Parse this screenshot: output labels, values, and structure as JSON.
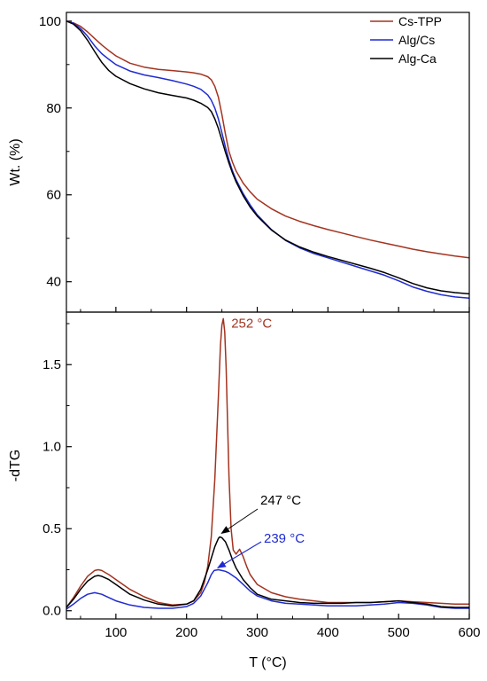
{
  "chart_data": [
    {
      "type": "line",
      "xlabel": "T (°C)",
      "ylabel": "Wt. (%)",
      "xlim": [
        30,
        600
      ],
      "ylim": [
        33,
        102
      ],
      "xticks": [
        100,
        200,
        300,
        400,
        500,
        600
      ],
      "yticks": [
        40,
        60,
        80,
        100
      ],
      "legend_position": "top-right",
      "series": [
        {
          "name": "Cs-TPP",
          "color": "#a3331f",
          "x": [
            30,
            40,
            50,
            60,
            70,
            80,
            90,
            100,
            120,
            140,
            160,
            180,
            200,
            210,
            220,
            230,
            235,
            240,
            245,
            250,
            255,
            260,
            265,
            270,
            280,
            290,
            300,
            320,
            340,
            360,
            380,
            400,
            420,
            440,
            460,
            480,
            500,
            520,
            540,
            560,
            580,
            600
          ],
          "y": [
            100,
            99.6,
            98.8,
            97.5,
            96,
            94.5,
            93.2,
            92,
            90.3,
            89.4,
            88.9,
            88.6,
            88.3,
            88.1,
            87.8,
            87.2,
            86.5,
            85,
            82.5,
            78.5,
            74,
            70,
            67.5,
            65.5,
            62.7,
            60.7,
            59,
            56.8,
            55.1,
            53.9,
            52.9,
            52,
            51.2,
            50.4,
            49.6,
            48.9,
            48.2,
            47.5,
            46.9,
            46.4,
            45.9,
            45.5
          ]
        },
        {
          "name": "Alg/Cs",
          "color": "#1f2bd1",
          "x": [
            30,
            40,
            50,
            60,
            70,
            80,
            90,
            100,
            120,
            140,
            160,
            180,
            200,
            210,
            220,
            230,
            235,
            240,
            245,
            250,
            255,
            260,
            265,
            270,
            280,
            290,
            300,
            320,
            340,
            360,
            380,
            400,
            420,
            440,
            460,
            480,
            500,
            520,
            540,
            560,
            580,
            600
          ],
          "y": [
            100,
            99.5,
            98.3,
            96.5,
            94.3,
            92.5,
            91.2,
            90,
            88.5,
            87.6,
            87,
            86.3,
            85.5,
            85,
            84.3,
            83,
            81.8,
            80,
            77.5,
            74.3,
            71,
            68,
            65.5,
            63.5,
            60.3,
            57.7,
            55.4,
            52,
            49.5,
            47.8,
            46.5,
            45.5,
            44.5,
            43.5,
            42.5,
            41.5,
            40.2,
            38.8,
            37.8,
            37,
            36.5,
            36.2
          ]
        },
        {
          "name": "Alg-Ca",
          "color": "#000000",
          "x": [
            30,
            40,
            50,
            60,
            70,
            80,
            90,
            100,
            120,
            140,
            160,
            180,
            200,
            210,
            220,
            230,
            235,
            240,
            245,
            250,
            255,
            260,
            265,
            270,
            280,
            290,
            300,
            320,
            340,
            360,
            380,
            400,
            420,
            440,
            460,
            480,
            500,
            520,
            540,
            560,
            580,
            600
          ],
          "y": [
            100,
            99.3,
            97.8,
            95.6,
            93,
            90.5,
            88.6,
            87.3,
            85.6,
            84.4,
            83.5,
            82.9,
            82.3,
            81.8,
            81.1,
            80.1,
            79.2,
            77.5,
            75.3,
            72.6,
            69.8,
            67.3,
            65,
            63,
            59.8,
            57.2,
            55.1,
            51.9,
            49.6,
            48,
            46.8,
            45.8,
            44.9,
            44,
            43.1,
            42.1,
            40.9,
            39.6,
            38.6,
            37.9,
            37.5,
            37.2
          ]
        }
      ]
    },
    {
      "type": "line",
      "xlabel": "T (°C)",
      "ylabel": "-dTG",
      "xlim": [
        30,
        600
      ],
      "ylim": [
        -0.05,
        1.82
      ],
      "xticks": [
        100,
        200,
        300,
        400,
        500,
        600
      ],
      "yticks": [
        0.0,
        0.5,
        1.0,
        1.5
      ],
      "ytick_labels": [
        "0.0",
        "0.5",
        "1.0",
        "1.5"
      ],
      "series": [
        {
          "name": "Cs-TPP",
          "color": "#a3331f",
          "x": [
            30,
            40,
            50,
            60,
            70,
            75,
            80,
            90,
            100,
            120,
            140,
            160,
            180,
            200,
            210,
            220,
            225,
            230,
            235,
            240,
            245,
            248,
            250,
            252,
            254,
            256,
            258,
            260,
            263,
            266,
            270,
            275,
            280,
            285,
            290,
            300,
            320,
            340,
            360,
            380,
            400,
            420,
            440,
            460,
            480,
            500,
            520,
            540,
            560,
            580,
            600
          ],
          "y": [
            0.02,
            0.08,
            0.15,
            0.21,
            0.245,
            0.25,
            0.245,
            0.22,
            0.19,
            0.13,
            0.085,
            0.05,
            0.035,
            0.04,
            0.06,
            0.11,
            0.17,
            0.27,
            0.45,
            0.8,
            1.3,
            1.62,
            1.74,
            1.78,
            1.7,
            1.48,
            1.15,
            0.82,
            0.5,
            0.37,
            0.345,
            0.375,
            0.33,
            0.27,
            0.22,
            0.16,
            0.11,
            0.085,
            0.07,
            0.06,
            0.05,
            0.05,
            0.05,
            0.05,
            0.055,
            0.06,
            0.055,
            0.05,
            0.045,
            0.04,
            0.04
          ]
        },
        {
          "name": "Alg/Cs",
          "color": "#1f2bd1",
          "x": [
            30,
            40,
            50,
            60,
            70,
            80,
            90,
            100,
            120,
            140,
            160,
            180,
            200,
            210,
            220,
            230,
            235,
            239,
            245,
            250,
            255,
            260,
            270,
            280,
            290,
            300,
            320,
            340,
            360,
            380,
            400,
            420,
            440,
            460,
            480,
            500,
            520,
            540,
            560,
            580,
            600
          ],
          "y": [
            0.01,
            0.04,
            0.075,
            0.1,
            0.11,
            0.1,
            0.08,
            0.06,
            0.035,
            0.02,
            0.015,
            0.015,
            0.025,
            0.045,
            0.09,
            0.17,
            0.22,
            0.245,
            0.25,
            0.245,
            0.24,
            0.23,
            0.2,
            0.16,
            0.12,
            0.09,
            0.06,
            0.045,
            0.04,
            0.035,
            0.03,
            0.03,
            0.03,
            0.035,
            0.04,
            0.05,
            0.045,
            0.035,
            0.02,
            0.015,
            0.015
          ]
        },
        {
          "name": "Alg-Ca",
          "color": "#000000",
          "x": [
            30,
            40,
            50,
            60,
            70,
            75,
            80,
            90,
            100,
            120,
            140,
            160,
            180,
            200,
            210,
            220,
            230,
            235,
            240,
            245,
            247,
            250,
            255,
            260,
            265,
            270,
            280,
            290,
            300,
            320,
            340,
            360,
            380,
            400,
            420,
            440,
            460,
            480,
            500,
            520,
            540,
            560,
            580,
            600
          ],
          "y": [
            0.02,
            0.07,
            0.13,
            0.18,
            0.21,
            0.215,
            0.21,
            0.19,
            0.16,
            0.1,
            0.065,
            0.04,
            0.03,
            0.04,
            0.06,
            0.13,
            0.25,
            0.32,
            0.39,
            0.44,
            0.45,
            0.445,
            0.42,
            0.37,
            0.31,
            0.26,
            0.19,
            0.14,
            0.1,
            0.07,
            0.06,
            0.05,
            0.045,
            0.045,
            0.045,
            0.05,
            0.05,
            0.055,
            0.06,
            0.05,
            0.04,
            0.025,
            0.02,
            0.02
          ]
        }
      ],
      "annotations": [
        {
          "text": "252 °C",
          "color": "#a3331f",
          "x": 252,
          "y": 1.78
        },
        {
          "text": "247 °C",
          "color": "#000000",
          "x": 247,
          "y": 0.45
        },
        {
          "text": "239 °C",
          "color": "#1f2bd1",
          "x": 239,
          "y": 0.245
        }
      ]
    }
  ]
}
